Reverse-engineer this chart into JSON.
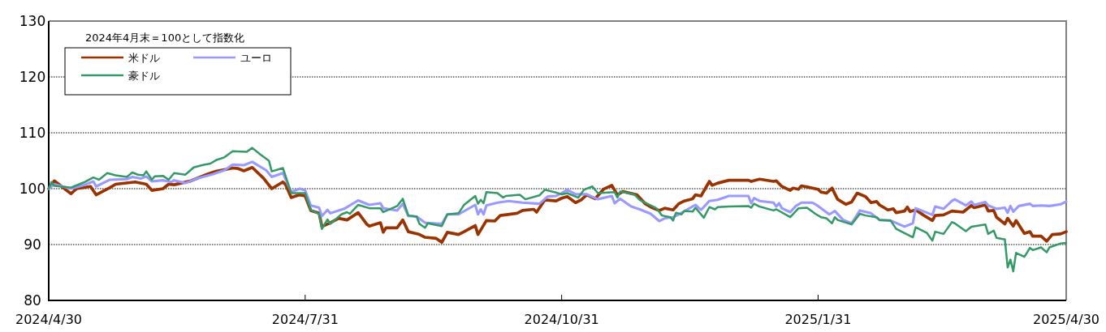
{
  "chart_data": {
    "type": "line",
    "annotations": [
      "2024年4月末＝100として指数化"
    ],
    "xlim": [
      "2024-04-30",
      "2025-04-30"
    ],
    "xticks": [
      {
        "value": "2024-04-30",
        "label": "2024/4/30"
      },
      {
        "value": "2024-07-31",
        "label": "2024/7/31"
      },
      {
        "value": "2024-10-31",
        "label": "2024/10/31"
      },
      {
        "value": "2025-01-31",
        "label": "2025/1/31"
      },
      {
        "value": "2025-04-30",
        "label": "2025/4/30"
      }
    ],
    "ylim": [
      80,
      130
    ],
    "yticks": [
      80,
      90,
      100,
      110,
      120,
      130
    ],
    "grid": "y",
    "legend": "top left",
    "line_style": "solid",
    "series": [
      {
        "name": "米ドル",
        "color": "#993300",
        "x": [
          "2024-04-30",
          "2024-05-02",
          "2024-05-08",
          "2024-05-10",
          "2024-05-15",
          "2024-05-17",
          "2024-05-22",
          "2024-05-24",
          "2024-05-31",
          "2024-06-04",
          "2024-06-06",
          "2024-06-10",
          "2024-06-12",
          "2024-06-14",
          "2024-06-20",
          "2024-06-26",
          "2024-06-29",
          "2024-07-05",
          "2024-07-07",
          "2024-07-09",
          "2024-07-12",
          "2024-07-16",
          "2024-07-19",
          "2024-07-23",
          "2024-07-24",
          "2024-07-26",
          "2024-07-29",
          "2024-07-31",
          "2024-08-02",
          "2024-08-05",
          "2024-08-06",
          "2024-08-09",
          "2024-08-12",
          "2024-08-15",
          "2024-08-19",
          "2024-08-22",
          "2024-08-23",
          "2024-08-27",
          "2024-08-28",
          "2024-08-29",
          "2024-09-02",
          "2024-09-04",
          "2024-09-06",
          "2024-09-10",
          "2024-09-12",
          "2024-09-16",
          "2024-09-18",
          "2024-09-20",
          "2024-09-24",
          "2024-09-26",
          "2024-09-30",
          "2024-10-01",
          "2024-10-04",
          "2024-10-07",
          "2024-10-09",
          "2024-10-15",
          "2024-10-17",
          "2024-10-21",
          "2024-10-22",
          "2024-10-25",
          "2024-10-29",
          "2024-10-31",
          "2024-11-02",
          "2024-11-05",
          "2024-11-07",
          "2024-11-09",
          "2024-11-12",
          "2024-11-15",
          "2024-11-18",
          "2024-11-20",
          "2024-11-22",
          "2024-11-27",
          "2024-11-30",
          "2024-12-02",
          "2024-12-05",
          "2024-12-07",
          "2024-12-10",
          "2024-12-12",
          "2024-12-14",
          "2024-12-17",
          "2024-12-18",
          "2024-12-20",
          "2024-12-23",
          "2024-12-24",
          "2024-12-26",
          "2024-12-30",
          "2025-01-06",
          "2025-01-07",
          "2025-01-10",
          "2025-01-15",
          "2025-01-16",
          "2025-01-18",
          "2025-01-21",
          "2025-01-22",
          "2025-01-24",
          "2025-01-25",
          "2025-01-27",
          "2025-01-31",
          "2025-02-01",
          "2025-02-03",
          "2025-02-05",
          "2025-02-07",
          "2025-02-10",
          "2025-02-12",
          "2025-02-14",
          "2025-02-17",
          "2025-02-19",
          "2025-02-21",
          "2025-02-22",
          "2025-02-25",
          "2025-02-27",
          "2025-02-28",
          "2025-03-03",
          "2025-03-04",
          "2025-03-05",
          "2025-03-07",
          "2025-03-10",
          "2025-03-13",
          "2025-03-14",
          "2025-03-17",
          "2025-03-20",
          "2025-03-24",
          "2025-03-27",
          "2025-03-28",
          "2025-04-01",
          "2025-04-02",
          "2025-04-04",
          "2025-04-05",
          "2025-04-08",
          "2025-04-09",
          "2025-04-11",
          "2025-04-12",
          "2025-04-15",
          "2025-04-17",
          "2025-04-18",
          "2025-04-21",
          "2025-04-23",
          "2025-04-25",
          "2025-04-28",
          "2025-04-30"
        ],
        "values": [
          100,
          101.4,
          99.1,
          100,
          100.4,
          98.9,
          100.2,
          100.8,
          101.2,
          100.8,
          99.7,
          100,
          100.8,
          100.7,
          101.4,
          102.6,
          103.1,
          103.7,
          103.6,
          103.2,
          103.8,
          101.9,
          100,
          101.2,
          100.7,
          98.4,
          98.9,
          98.7,
          96.1,
          95.6,
          93.2,
          93.9,
          94.7,
          94.4,
          95.7,
          93.7,
          93.3,
          93.9,
          92.2,
          93,
          93,
          94.4,
          92.3,
          91.8,
          91.3,
          91.1,
          90.4,
          92.2,
          91.8,
          92.3,
          93.4,
          91.8,
          94.3,
          94.2,
          95.2,
          95.6,
          96.1,
          96.3,
          95.8,
          98,
          97.8,
          98.3,
          98.6,
          97.5,
          98,
          98.9,
          98.2,
          99.9,
          100.6,
          98.9,
          99.5,
          98.9,
          97.3,
          96.7,
          96.1,
          96.5,
          96.2,
          97.3,
          97.8,
          98.2,
          98.9,
          98.7,
          101.3,
          100.6,
          101,
          101.5,
          101.5,
          101.3,
          101.7,
          101.3,
          101.4,
          100.4,
          99.7,
          100.1,
          99.9,
          100.5,
          100.3,
          99.9,
          99.4,
          99.2,
          100.1,
          98.1,
          97.2,
          97.6,
          99.2,
          98.6,
          97.5,
          97.7,
          97.1,
          96.2,
          96.4,
          95.7,
          96,
          96.7,
          95.9,
          96.2,
          95.2,
          94.3,
          95.2,
          95.3,
          96,
          95.8,
          97,
          96.6,
          97.1,
          96,
          96.1,
          94.9,
          93.7,
          94.7,
          93.3,
          94.3,
          92,
          92.3,
          91.5,
          91.5,
          90.6,
          91.8,
          91.9,
          92.3
        ]
      },
      {
        "name": "ユーロ",
        "color": "#9999ff",
        "x": [
          "2024-04-30",
          "2024-05-02",
          "2024-05-08",
          "2024-05-13",
          "2024-05-16",
          "2024-05-17",
          "2024-05-22",
          "2024-05-28",
          "2024-05-30",
          "2024-06-02",
          "2024-06-04",
          "2024-06-06",
          "2024-06-10",
          "2024-06-13",
          "2024-06-14",
          "2024-06-18",
          "2024-06-22",
          "2024-06-28",
          "2024-07-02",
          "2024-07-05",
          "2024-07-09",
          "2024-07-12",
          "2024-07-17",
          "2024-07-19",
          "2024-07-23",
          "2024-07-26",
          "2024-07-29",
          "2024-07-31",
          "2024-08-02",
          "2024-08-05",
          "2024-08-06",
          "2024-08-08",
          "2024-08-09",
          "2024-08-14",
          "2024-08-19",
          "2024-08-23",
          "2024-08-27",
          "2024-08-28",
          "2024-09-02",
          "2024-09-04",
          "2024-09-06",
          "2024-09-09",
          "2024-09-12",
          "2024-09-18",
          "2024-09-20",
          "2024-09-24",
          "2024-09-30",
          "2024-10-01",
          "2024-10-02",
          "2024-10-03",
          "2024-10-04",
          "2024-10-08",
          "2024-10-12",
          "2024-10-17",
          "2024-10-23",
          "2024-10-26",
          "2024-10-29",
          "2024-10-31",
          "2024-11-02",
          "2024-11-05",
          "2024-11-09",
          "2024-11-13",
          "2024-11-18",
          "2024-11-19",
          "2024-11-21",
          "2024-11-25",
          "2024-11-28",
          "2024-12-02",
          "2024-12-05",
          "2024-12-07",
          "2024-12-10",
          "2024-12-12",
          "2024-12-18",
          "2024-12-20",
          "2024-12-23",
          "2024-12-26",
          "2024-12-30",
          "2025-01-06",
          "2025-01-07",
          "2025-01-08",
          "2025-01-10",
          "2025-01-15",
          "2025-01-16",
          "2025-01-17",
          "2025-01-18",
          "2025-01-21",
          "2025-01-23",
          "2025-01-25",
          "2025-01-29",
          "2025-01-31",
          "2025-02-04",
          "2025-02-06",
          "2025-02-09",
          "2025-02-12",
          "2025-02-15",
          "2025-02-19",
          "2025-02-22",
          "2025-02-26",
          "2025-03-03",
          "2025-03-06",
          "2025-03-07",
          "2025-03-11",
          "2025-03-13",
          "2025-03-14",
          "2025-03-17",
          "2025-03-20",
          "2025-03-21",
          "2025-03-25",
          "2025-03-27",
          "2025-03-28",
          "2025-04-01",
          "2025-04-02",
          "2025-04-05",
          "2025-04-08",
          "2025-04-09",
          "2025-04-10",
          "2025-04-11",
          "2025-04-13",
          "2025-04-17",
          "2025-04-18",
          "2025-04-21",
          "2025-04-24",
          "2025-04-28",
          "2025-04-30"
        ],
        "values": [
          100,
          100.8,
          100,
          100.7,
          101.3,
          100.4,
          101.6,
          101.7,
          102.1,
          101.8,
          102.2,
          101.3,
          101.5,
          101.2,
          101.5,
          101,
          101.8,
          102.6,
          103.3,
          104.3,
          104.2,
          104.8,
          103.3,
          102.1,
          102.8,
          99.4,
          100,
          99.7,
          97,
          96.6,
          95.1,
          96.2,
          95.6,
          96.4,
          97.9,
          97.1,
          97.4,
          96.5,
          96.1,
          97.3,
          95.1,
          95,
          93.9,
          93.7,
          95.4,
          95.4,
          97.1,
          95.4,
          96.3,
          95.4,
          97,
          97.5,
          97.8,
          97.5,
          97.3,
          98.6,
          98.7,
          99.2,
          99.8,
          99,
          99,
          98.1,
          98.7,
          97.4,
          98.2,
          96.8,
          96.3,
          95.5,
          94.2,
          94.7,
          94.9,
          95.4,
          97.1,
          96.2,
          97.8,
          98,
          98.7,
          98.7,
          97.4,
          98.3,
          97.8,
          97.5,
          96.8,
          97.4,
          96.5,
          95.8,
          96.9,
          97.5,
          97.5,
          96.9,
          95.4,
          96,
          94.4,
          93.8,
          96.1,
          95.6,
          94.4,
          94.3,
          93.2,
          93.8,
          96.5,
          95.7,
          95.3,
          96.8,
          96.4,
          97.8,
          98.1,
          97,
          97.7,
          97.1,
          97.6,
          97,
          96.4,
          96.6,
          95.7,
          96.9,
          95.9,
          96.9,
          97.3,
          96.9,
          97,
          96.9,
          97.2,
          97.7
        ]
      },
      {
        "name": "豪ドル",
        "color": "#339966",
        "x": [
          "2024-04-30",
          "2024-05-01",
          "2024-05-02",
          "2024-05-08",
          "2024-05-09",
          "2024-05-13",
          "2024-05-16",
          "2024-05-18",
          "2024-05-21",
          "2024-05-24",
          "2024-05-28",
          "2024-05-30",
          "2024-06-01",
          "2024-06-03",
          "2024-06-04",
          "2024-06-06",
          "2024-06-07",
          "2024-06-10",
          "2024-06-12",
          "2024-06-14",
          "2024-06-18",
          "2024-06-21",
          "2024-06-24",
          "2024-06-27",
          "2024-06-29",
          "2024-07-02",
          "2024-07-05",
          "2024-07-10",
          "2024-07-12",
          "2024-07-15",
          "2024-07-18",
          "2024-07-19",
          "2024-07-23",
          "2024-07-26",
          "2024-07-31",
          "2024-08-02",
          "2024-08-05",
          "2024-08-06",
          "2024-08-08",
          "2024-08-09",
          "2024-08-13",
          "2024-08-15",
          "2024-08-16",
          "2024-08-19",
          "2024-08-23",
          "2024-08-27",
          "2024-08-28",
          "2024-09-02",
          "2024-09-04",
          "2024-09-06",
          "2024-09-09",
          "2024-09-10",
          "2024-09-12",
          "2024-09-13",
          "2024-09-18",
          "2024-09-20",
          "2024-09-24",
          "2024-09-26",
          "2024-09-30",
          "2024-10-01",
          "2024-10-02",
          "2024-10-03",
          "2024-10-04",
          "2024-10-08",
          "2024-10-10",
          "2024-10-11",
          "2024-10-16",
          "2024-10-18",
          "2024-10-23",
          "2024-10-25",
          "2024-10-29",
          "2024-10-31",
          "2024-11-02",
          "2024-11-06",
          "2024-11-08",
          "2024-11-11",
          "2024-11-13",
          "2024-11-19",
          "2024-11-20",
          "2024-11-21",
          "2024-11-26",
          "2024-11-28",
          "2024-12-04",
          "2024-12-06",
          "2024-12-09",
          "2024-12-10",
          "2024-12-11",
          "2024-12-13",
          "2024-12-14",
          "2024-12-17",
          "2024-12-18",
          "2024-12-21",
          "2024-12-23",
          "2024-12-25",
          "2024-12-26",
          "2024-12-30",
          "2025-01-06",
          "2025-01-07",
          "2025-01-08",
          "2025-01-10",
          "2025-01-15",
          "2025-01-16",
          "2025-01-21",
          "2025-01-24",
          "2025-01-27",
          "2025-01-30",
          "2025-02-01",
          "2025-02-03",
          "2025-02-05",
          "2025-02-06",
          "2025-02-07",
          "2025-02-12",
          "2025-02-15",
          "2025-02-17",
          "2025-02-21",
          "2025-02-22",
          "2025-02-26",
          "2025-02-28",
          "2025-03-04",
          "2025-03-06",
          "2025-03-07",
          "2025-03-11",
          "2025-03-13",
          "2025-03-14",
          "2025-03-17",
          "2025-03-20",
          "2025-03-21",
          "2025-03-25",
          "2025-03-27",
          "2025-04-01",
          "2025-04-02",
          "2025-04-04",
          "2025-04-05",
          "2025-04-08",
          "2025-04-09",
          "2025-04-10",
          "2025-04-11",
          "2025-04-12",
          "2025-04-15",
          "2025-04-17",
          "2025-04-18",
          "2025-04-21",
          "2025-04-23",
          "2025-04-24",
          "2025-04-28",
          "2025-04-30"
        ],
        "values": [
          100,
          101.2,
          100.5,
          100.2,
          100.4,
          101.2,
          102,
          101.6,
          102.8,
          102.4,
          102.1,
          102.9,
          102.5,
          102.4,
          103.1,
          101.6,
          102.2,
          102.3,
          101.6,
          102.8,
          102.5,
          103.8,
          104.2,
          104.5,
          105.1,
          105.6,
          106.7,
          106.6,
          107.3,
          106.1,
          105,
          103.1,
          103.7,
          99.2,
          99.2,
          96.2,
          95.5,
          92.8,
          94.5,
          93.7,
          95.4,
          95.8,
          95.5,
          97.1,
          96.5,
          96.5,
          95.8,
          96.9,
          98.2,
          95.2,
          95,
          93.7,
          93,
          93.8,
          93.3,
          95.4,
          95.6,
          97.1,
          98.7,
          97.3,
          98,
          97.4,
          99.4,
          99.2,
          98.4,
          98.7,
          98.9,
          98.1,
          98.8,
          99.8,
          99.3,
          99,
          99.2,
          98.4,
          99.8,
          100.4,
          99.2,
          99.4,
          98.4,
          99.5,
          99,
          98,
          96.5,
          95.2,
          94.9,
          94.3,
          95.7,
          95.4,
          96,
          95.9,
          96.6,
          94.8,
          96.7,
          96.3,
          96.7,
          96.8,
          96.9,
          96.6,
          97.3,
          96.8,
          96.1,
          96.3,
          94.9,
          96.5,
          96.6,
          95.5,
          94.9,
          94.7,
          93.8,
          94.9,
          94.4,
          93.6,
          95.5,
          95.2,
          94.9,
          94.4,
          94.3,
          92.8,
          91.8,
          91.3,
          93.1,
          92.1,
          90.7,
          92.3,
          91.9,
          94,
          93.8,
          92.4,
          93.2,
          93.6,
          91.9,
          92.5,
          91.2,
          90.9,
          85.9,
          87.3,
          85.2,
          88.5,
          87.8,
          89.4,
          89,
          89.5,
          88.6,
          89.5,
          90.2,
          90.3
        ]
      }
    ]
  }
}
